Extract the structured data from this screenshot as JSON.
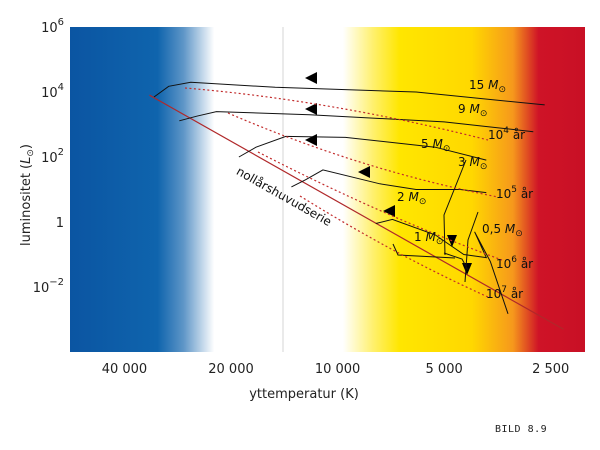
{
  "chart_data": {
    "type": "line",
    "title": "",
    "xlabel": "yttemperatur (K)",
    "ylabel": "luminositet (L⊙)",
    "x_scale": "log",
    "y_scale": "log",
    "x_reversed": true,
    "xlim": [
      57000,
      2000
    ],
    "ylim": [
      0.0001,
      1000000
    ],
    "x_ticks": [
      {
        "value": 40000,
        "label": "40 000"
      },
      {
        "value": 20000,
        "label": "20 000"
      },
      {
        "value": 10000,
        "label": "10 000"
      },
      {
        "value": 5000,
        "label": "5 000"
      },
      {
        "value": 2500,
        "label": "2 500"
      }
    ],
    "y_ticks": [
      {
        "value": 1000000,
        "base": "10",
        "exp": "6"
      },
      {
        "value": 10000,
        "base": "10",
        "exp": "4"
      },
      {
        "value": 100,
        "base": "10",
        "exp": "2"
      },
      {
        "value": 1,
        "base": "1",
        "exp": ""
      },
      {
        "value": 0.01,
        "base": "10",
        "exp": "−2"
      }
    ],
    "background_bands": [
      {
        "name": "blue",
        "color": "#0b56a3"
      },
      {
        "name": "white",
        "color": "#ffffff"
      },
      {
        "name": "yellow",
        "color": "#ffe600"
      },
      {
        "name": "orange",
        "color": "#f7a21c"
      },
      {
        "name": "red",
        "color": "#cd1127"
      }
    ],
    "zams": {
      "label": "nollårshuvudserie",
      "color": "#b0282a",
      "points": [
        [
          34000,
          8000
        ],
        [
          2300,
          0.0005
        ]
      ]
    },
    "series": [
      {
        "name": "15 M⊙",
        "points": [
          [
            2600,
            4000
          ],
          [
            6000,
            10000
          ],
          [
            15000,
            14000
          ],
          [
            26000,
            20000
          ],
          [
            30000,
            15000
          ],
          [
            33000,
            7000
          ]
        ]
      },
      {
        "name": "9 M⊙",
        "points": [
          [
            2800,
            600
          ],
          [
            5000,
            1200
          ],
          [
            12000,
            2000
          ],
          [
            22000,
            2500
          ],
          [
            25000,
            1800
          ],
          [
            28000,
            1300
          ]
        ]
      },
      {
        "name": "5 M⊙",
        "points": [
          [
            3800,
            80
          ],
          [
            5300,
            200
          ],
          [
            9500,
            400
          ],
          [
            14000,
            430
          ],
          [
            17000,
            200
          ],
          [
            19000,
            100
          ]
        ]
      },
      {
        "name": "3 M⊙",
        "points": [
          [
            3800,
            8
          ],
          [
            4500,
            10
          ],
          [
            6000,
            10
          ],
          [
            7600,
            15
          ],
          [
            11000,
            40
          ],
          [
            12300,
            20
          ],
          [
            13500,
            12
          ]
        ]
      },
      {
        "name": "1 M⊙",
        "points": [
          [
            3300,
            0.0015
          ],
          [
            3700,
            0.06
          ],
          [
            4100,
            0.5
          ],
          [
            3800,
            0.08
          ],
          [
            4400,
            0.1
          ],
          [
            5300,
            0.4
          ],
          [
            7000,
            1.2
          ],
          [
            7800,
            0.9
          ]
        ]
      }
    ],
    "isochrones": [
      {
        "label_base": "10",
        "label_exp": "4",
        "label_unit": "år"
      },
      {
        "label_base": "10",
        "label_exp": "5",
        "label_unit": "år"
      },
      {
        "label_base": "10",
        "label_exp": "6",
        "label_unit": "år"
      },
      {
        "label_base": "10",
        "label_exp": "7",
        "label_unit": "år"
      }
    ],
    "arrow_labels": [
      "15 M⊙",
      "9 M⊙",
      "5 M⊙",
      "3 M⊙",
      "2 M⊙",
      "1 M⊙",
      "0,5 M⊙"
    ],
    "grid": false,
    "legend": "none"
  },
  "figure_label": "BILD 8.9"
}
